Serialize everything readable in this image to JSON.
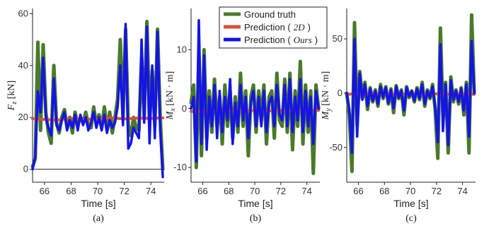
{
  "colors": {
    "truth": "#4a7a2a",
    "pred2d": "#d9503a",
    "ours": "#1414e6",
    "axis": "#222222"
  },
  "legend": {
    "truth": "Ground truth",
    "pred2d_prefix": "Prediction (",
    "pred2d_method": "2D",
    "pred2d_suffix": ")",
    "ours_prefix": "Prediction (",
    "ours_method": "Ours",
    "ours_suffix": ")"
  },
  "chart_data": [
    {
      "type": "line",
      "caption": "(a)",
      "xlabel": "Time [s]",
      "ylabel_sym": "F",
      "ylabel_sub": "z",
      "ylabel_unit": "[kN]",
      "xlim": [
        65.1,
        75.0
      ],
      "ylim": [
        -5,
        62
      ],
      "xticks": [
        66,
        68,
        70,
        72,
        74
      ],
      "yticks": [
        0,
        20,
        40,
        60
      ],
      "zero_line": true,
      "series": [
        {
          "key": "truth",
          "x": [
            65.1,
            65.3,
            65.5,
            65.7,
            65.9,
            66.1,
            66.3,
            66.5,
            66.7,
            66.9,
            67.1,
            67.3,
            67.5,
            67.7,
            67.9,
            68.1,
            68.3,
            68.5,
            68.7,
            68.9,
            69.1,
            69.3,
            69.5,
            69.7,
            69.9,
            70.1,
            70.3,
            70.5,
            70.7,
            70.9,
            71.1,
            71.3,
            71.5,
            71.7,
            71.9,
            72.1,
            72.3,
            72.5,
            72.7,
            72.9,
            73.1,
            73.3,
            73.5,
            73.7,
            73.9,
            74.1,
            74.3,
            74.5,
            74.7,
            74.9
          ],
          "y": [
            1,
            4,
            49,
            15,
            48,
            22,
            14,
            10,
            40,
            18,
            14,
            20,
            23,
            16,
            20,
            14,
            22,
            17,
            20,
            18,
            22,
            17,
            16,
            24,
            17,
            21,
            16,
            24,
            15,
            22,
            14,
            20,
            27,
            50,
            20,
            54,
            17,
            13,
            20,
            16,
            15,
            43,
            20,
            57,
            18,
            38,
            17,
            54,
            20,
            0
          ]
        },
        {
          "key": "pred2d",
          "x": [
            65.1,
            66,
            67,
            68,
            69,
            70,
            71,
            72,
            73,
            74,
            74.9
          ],
          "y": [
            19.5,
            19.2,
            19.0,
            19.6,
            19.2,
            19.4,
            19.8,
            19.4,
            19.7,
            19.6,
            19.8
          ]
        },
        {
          "key": "ours",
          "x": [
            65.1,
            65.3,
            65.5,
            65.7,
            65.9,
            66.1,
            66.3,
            66.5,
            66.7,
            66.9,
            67.1,
            67.3,
            67.5,
            67.7,
            67.9,
            68.1,
            68.3,
            68.5,
            68.7,
            68.9,
            69.1,
            69.3,
            69.5,
            69.7,
            69.9,
            70.1,
            70.3,
            70.5,
            70.7,
            70.9,
            71.1,
            71.3,
            71.5,
            71.7,
            71.9,
            72.1,
            72.3,
            72.5,
            72.7,
            72.9,
            73.1,
            73.3,
            73.5,
            73.7,
            73.9,
            74.1,
            74.3,
            74.5,
            74.7,
            74.9
          ],
          "y": [
            0,
            5,
            30,
            22,
            43,
            20,
            16,
            13,
            35,
            17,
            15,
            19,
            22,
            15,
            19,
            16,
            21,
            15,
            21,
            17,
            20,
            15,
            18,
            22,
            16,
            20,
            15,
            21,
            14,
            19,
            16,
            18,
            24,
            40,
            17,
            56,
            8,
            10,
            16,
            14,
            12,
            50,
            18,
            55,
            10,
            40,
            12,
            53,
            15,
            -3
          ]
        }
      ]
    },
    {
      "type": "line",
      "caption": "(b)",
      "xlabel": "Time [s]",
      "ylabel_sym": "M",
      "ylabel_sub": "x",
      "ylabel_unit": "[kN · m]",
      "xlim": [
        65.1,
        75.0
      ],
      "ylim": [
        -12.5,
        17
      ],
      "xticks": [
        66,
        68,
        70,
        72,
        74
      ],
      "yticks": [
        -10,
        0,
        10
      ],
      "zero_line": false,
      "series": [
        {
          "key": "truth",
          "x": [
            65.1,
            65.3,
            65.5,
            65.7,
            65.9,
            66.1,
            66.3,
            66.5,
            66.7,
            66.9,
            67.1,
            67.3,
            67.5,
            67.7,
            67.9,
            68.1,
            68.3,
            68.5,
            68.7,
            68.9,
            69.1,
            69.3,
            69.5,
            69.7,
            69.9,
            70.1,
            70.3,
            70.5,
            70.7,
            70.9,
            71.1,
            71.3,
            71.5,
            71.7,
            71.9,
            72.1,
            72.3,
            72.5,
            72.7,
            72.9,
            73.1,
            73.3,
            73.5,
            73.7,
            73.9,
            74.1,
            74.3,
            74.5,
            74.7,
            74.9
          ],
          "y": [
            1,
            4,
            -10,
            9,
            -8,
            10,
            -5,
            3,
            -4,
            5,
            -3,
            2,
            -6,
            4,
            -3,
            3,
            -5,
            2,
            -4,
            6,
            -3,
            3,
            -8,
            2,
            4,
            -4,
            3,
            -2,
            4,
            -6,
            2,
            3,
            -5,
            6,
            -2,
            -3,
            5,
            -4,
            6,
            -7,
            3,
            -3,
            8,
            -6,
            4,
            -4,
            3,
            -11,
            4,
            0
          ]
        },
        {
          "key": "pred2d",
          "x": [
            65.1,
            66,
            67,
            68,
            69,
            70,
            71,
            72,
            73,
            74,
            74.9
          ],
          "y": [
            -0.5,
            -0.4,
            -0.5,
            -0.3,
            -0.4,
            -0.3,
            -0.4,
            -0.3,
            -0.4,
            -0.3,
            -0.3
          ]
        },
        {
          "key": "ours",
          "x": [
            65.1,
            65.3,
            65.5,
            65.7,
            65.9,
            66.1,
            66.3,
            66.5,
            66.7,
            66.9,
            67.1,
            67.3,
            67.5,
            67.7,
            67.9,
            68.1,
            68.3,
            68.5,
            68.7,
            68.9,
            69.1,
            69.3,
            69.5,
            69.7,
            69.9,
            70.1,
            70.3,
            70.5,
            70.7,
            70.9,
            71.1,
            71.3,
            71.5,
            71.7,
            71.9,
            72.1,
            72.3,
            72.5,
            72.7,
            72.9,
            73.1,
            73.3,
            73.5,
            73.7,
            73.9,
            74.1,
            74.3,
            74.5,
            74.7,
            74.9
          ],
          "y": [
            0,
            2,
            -9,
            15,
            -6,
            9,
            -7,
            2,
            -3,
            4,
            -5,
            3,
            -4,
            2,
            -2,
            5,
            -6,
            1,
            -3,
            4,
            -2,
            2,
            -5,
            1,
            3,
            -3,
            2,
            -3,
            3,
            -4,
            1,
            2,
            -3,
            4,
            -1,
            -2,
            4,
            -3,
            5,
            -4,
            2,
            -2,
            5,
            -4,
            3,
            -3,
            2,
            -6,
            3,
            0
          ]
        }
      ]
    },
    {
      "type": "line",
      "caption": "(c)",
      "xlabel": "Time [s]",
      "ylabel_sym": "M",
      "ylabel_sub": "y",
      "ylabel_unit": "[kN · m]",
      "xlim": [
        65.1,
        75.0
      ],
      "ylim": [
        -82,
        78
      ],
      "xticks": [
        66,
        68,
        70,
        72,
        74
      ],
      "yticks": [
        -50,
        0,
        50
      ],
      "zero_line": false,
      "series": [
        {
          "key": "truth",
          "x": [
            65.1,
            65.3,
            65.5,
            65.7,
            65.9,
            66.1,
            66.3,
            66.5,
            66.7,
            66.9,
            67.1,
            67.3,
            67.5,
            67.7,
            67.9,
            68.1,
            68.3,
            68.5,
            68.7,
            68.9,
            69.1,
            69.3,
            69.5,
            69.7,
            69.9,
            70.1,
            70.3,
            70.5,
            70.7,
            70.9,
            71.1,
            71.3,
            71.5,
            71.7,
            71.9,
            72.1,
            72.3,
            72.5,
            72.7,
            72.9,
            73.1,
            73.3,
            73.5,
            73.7,
            73.9,
            74.1,
            74.3,
            74.5,
            74.7,
            74.9
          ],
          "y": [
            0,
            -20,
            -72,
            65,
            -30,
            20,
            -5,
            10,
            -15,
            5,
            -8,
            3,
            -12,
            8,
            -5,
            6,
            -10,
            4,
            -18,
            7,
            -5,
            3,
            -20,
            6,
            -4,
            2,
            -8,
            5,
            -6,
            10,
            -12,
            3,
            -5,
            8,
            -15,
            -60,
            60,
            -20,
            10,
            -55,
            15,
            -8,
            3,
            -10,
            5,
            -20,
            10,
            -55,
            72,
            0
          ]
        },
        {
          "key": "pred2d",
          "x": [
            65.1,
            66,
            67,
            68,
            69,
            70,
            71,
            72,
            73,
            74,
            74.9
          ],
          "y": [
            -1,
            -0.5,
            -1,
            -0.5,
            -1,
            -0.5,
            -1,
            -0.5,
            -1,
            -0.5,
            -1
          ]
        },
        {
          "key": "ours",
          "x": [
            65.1,
            65.3,
            65.5,
            65.7,
            65.9,
            66.1,
            66.3,
            66.5,
            66.7,
            66.9,
            67.1,
            67.3,
            67.5,
            67.7,
            67.9,
            68.1,
            68.3,
            68.5,
            68.7,
            68.9,
            69.1,
            69.3,
            69.5,
            69.7,
            69.9,
            70.1,
            70.3,
            70.5,
            70.7,
            70.9,
            71.1,
            71.3,
            71.5,
            71.7,
            71.9,
            72.1,
            72.3,
            72.5,
            72.7,
            72.9,
            73.1,
            73.3,
            73.5,
            73.7,
            73.9,
            74.1,
            74.3,
            74.5,
            74.7,
            74.9
          ],
          "y": [
            0,
            -15,
            -55,
            50,
            -40,
            18,
            -6,
            8,
            -12,
            4,
            -7,
            2,
            -10,
            6,
            -4,
            5,
            -9,
            3,
            -14,
            6,
            -4,
            2,
            -16,
            5,
            -3,
            2,
            -7,
            4,
            -5,
            8,
            -10,
            2,
            -4,
            6,
            -12,
            -45,
            45,
            -35,
            8,
            -48,
            12,
            -6,
            2,
            -8,
            4,
            -16,
            8,
            -40,
            48,
            0
          ]
        }
      ]
    }
  ]
}
